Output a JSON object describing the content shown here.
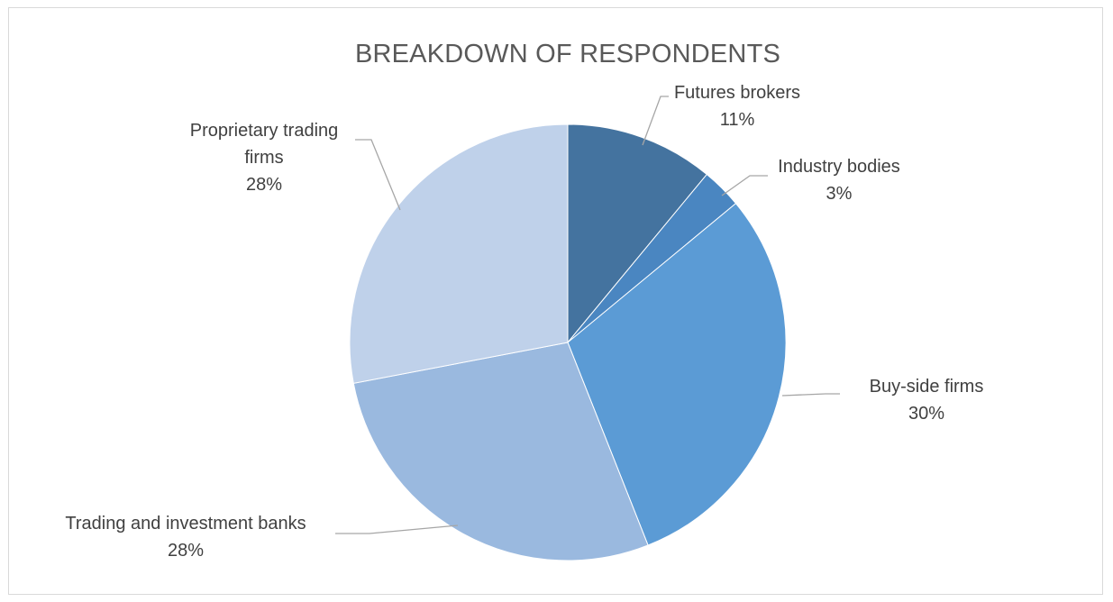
{
  "chart_data": {
    "type": "pie",
    "title": "BREAKDOWN OF RESPONDENTS",
    "start_angle_deg": 0,
    "direction": "clockwise",
    "slices": [
      {
        "name": "Futures brokers",
        "value": 11,
        "label_lines": [
          "Futures brokers",
          "11%"
        ],
        "color": "#44739f"
      },
      {
        "name": "Industry bodies",
        "value": 3,
        "label_lines": [
          "Industry bodies",
          "3%"
        ],
        "color": "#4a86c1"
      },
      {
        "name": "Buy-side firms",
        "value": 30,
        "label_lines": [
          "Buy-side firms",
          "30%"
        ],
        "color": "#5b9bd5"
      },
      {
        "name": "Trading and investment banks",
        "value": 28,
        "label_lines": [
          "Trading and investment banks",
          "28%"
        ],
        "color": "#9ab9df"
      },
      {
        "name": "Proprietary trading firms",
        "value": 28,
        "label_lines": [
          "Proprietary trading",
          "firms",
          "28%"
        ],
        "color": "#bfd1ea"
      }
    ]
  }
}
